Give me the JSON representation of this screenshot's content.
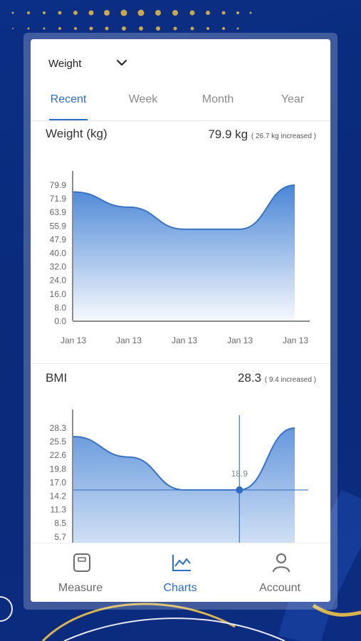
{
  "metric_selector": {
    "selected": "Weight"
  },
  "tabs": [
    {
      "label": "Recent",
      "active": true
    },
    {
      "label": "Week",
      "active": false
    },
    {
      "label": "Month",
      "active": false
    },
    {
      "label": "Year",
      "active": false
    }
  ],
  "weight_section": {
    "title": "Weight (kg)",
    "value": "79.9 kg",
    "change_note": "( 26.7 kg increased )"
  },
  "bmi_section": {
    "title": "BMI",
    "value": "28.3",
    "change_note": "( 9.4 increased )",
    "selected_point_label": "18.9"
  },
  "nav": [
    {
      "label": "Measure",
      "icon": "scale-icon",
      "active": false
    },
    {
      "label": "Charts",
      "icon": "line-chart-icon",
      "active": true
    },
    {
      "label": "Account",
      "icon": "person-icon",
      "active": false
    }
  ],
  "colors": {
    "accent": "#2a6fc9",
    "fill": "#4a86d6"
  },
  "chart_data": [
    {
      "type": "area",
      "title": "Weight (kg)",
      "x": [
        "Jan 13",
        "Jan 13",
        "Jan 13",
        "Jan 13",
        "Jan 13"
      ],
      "yticks": [
        "79.9",
        "71.9",
        "63.9",
        "55.9",
        "47.9",
        "40.0",
        "32.0",
        "24.0",
        "16.0",
        "8.0",
        "0.0"
      ],
      "values": [
        75.9,
        66.9,
        53.9,
        53.9,
        79.9
      ],
      "ylim": [
        0,
        79.9
      ],
      "grid": false
    },
    {
      "type": "area",
      "title": "BMI",
      "yticks": [
        "28.3",
        "25.5",
        "22.6",
        "19.8",
        "17.0",
        "14.2",
        "11.3",
        "8.5",
        "5.7"
      ],
      "values": [
        27.0,
        23.9,
        18.9,
        18.9,
        28.3
      ],
      "ylim": [
        5.7,
        28.3
      ],
      "highlight_value": 18.9,
      "grid": false
    }
  ]
}
